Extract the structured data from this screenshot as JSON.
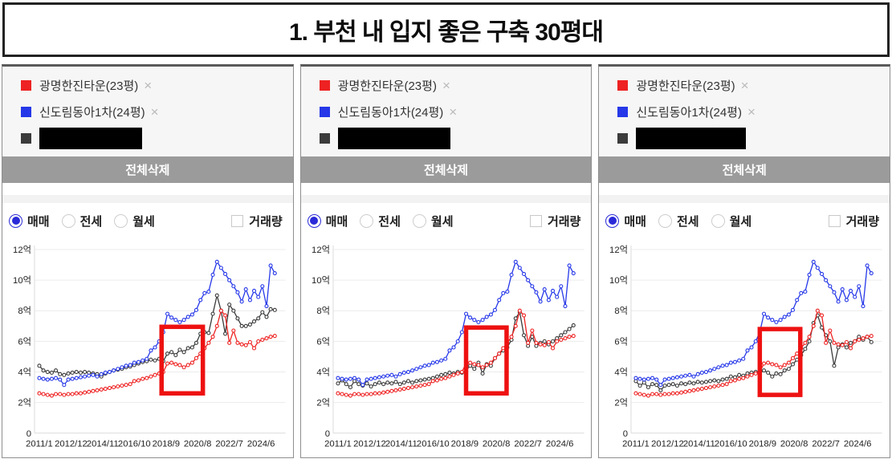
{
  "title": "1. 부천 내 입지 좋은 구축 30평대",
  "ui": {
    "delete_all_label": "전체삭제",
    "remove_icon": "×",
    "trade_types": [
      {
        "label": "매매",
        "selected": true
      },
      {
        "label": "전세",
        "selected": false
      },
      {
        "label": "월세",
        "selected": false
      }
    ],
    "volume_label": "거래량",
    "volume_checked": false,
    "colors": {
      "red_series": "#ee2222",
      "blue_series": "#2638e8",
      "black_series": "#3b3b3b",
      "button_bg": "#9b9b9b",
      "radio_selected": "#2a2ad8",
      "highlight_box": "#ee1111",
      "legend_bg": "#f6f6f6"
    }
  },
  "panels": [
    {
      "legend": [
        {
          "label": "광명한진타운(23평)",
          "color": "#ee2222",
          "removable": true,
          "redacted": false
        },
        {
          "label": "신도림동아1차(24평)",
          "color": "#2638e8",
          "removable": true,
          "redacted": false
        },
        {
          "label": "",
          "color": "#3b3b3b",
          "removable": false,
          "redacted": true,
          "redacted_width": 128
        }
      ],
      "chart_index": 0
    },
    {
      "legend": [
        {
          "label": "광명한진타운(23평)",
          "color": "#ee2222",
          "removable": true,
          "redacted": false
        },
        {
          "label": "신도림동아1차(24평)",
          "color": "#2638e8",
          "removable": true,
          "redacted": false
        },
        {
          "label": "",
          "color": "#3b3b3b",
          "removable": false,
          "redacted": true,
          "redacted_width": 140
        }
      ],
      "chart_index": 1
    },
    {
      "legend": [
        {
          "label": "광명한진타운(23평)",
          "color": "#ee2222",
          "removable": true,
          "redacted": false
        },
        {
          "label": "신도림동아1차(24평)",
          "color": "#2638e8",
          "removable": true,
          "redacted": false
        },
        {
          "label": "",
          "color": "#3b3b3b",
          "removable": false,
          "redacted": true,
          "redacted_width": 137
        }
      ],
      "chart_index": 2
    }
  ],
  "chart_data": [
    {
      "type": "line",
      "title": "",
      "unit": "억",
      "x_start": 2011.0,
      "x_step": 0.25,
      "x_tick_labels": [
        "2011/1",
        "2012/12",
        "2014/11",
        "2016/10",
        "2018/9",
        "2020/8",
        "2022/7",
        "2024/6"
      ],
      "x_tick_values": [
        2011.0,
        2012.92,
        2014.83,
        2016.75,
        2018.67,
        2020.58,
        2022.5,
        2024.42
      ],
      "y_tick_labels": [
        "0",
        "2억",
        "4억",
        "6억",
        "8억",
        "10억",
        "12억"
      ],
      "y_tick_values": [
        0,
        2,
        4,
        6,
        8,
        10,
        12
      ],
      "ylim": [
        0,
        12.6
      ],
      "grid": "horizontal",
      "legend_position": "top-panel",
      "series": [
        {
          "name": "광명한진타운(23평)",
          "color": "#ee2222",
          "redacted": false,
          "values": [
            2.6,
            2.55,
            2.5,
            2.45,
            2.55,
            2.55,
            2.5,
            2.55,
            2.55,
            2.6,
            2.6,
            2.65,
            2.7,
            2.75,
            2.8,
            2.85,
            2.9,
            2.95,
            3.0,
            3.05,
            3.1,
            3.15,
            3.2,
            3.4,
            3.45,
            3.55,
            3.6,
            3.7,
            3.8,
            3.9,
            4.0,
            4.55,
            4.6,
            4.5,
            4.45,
            4.3,
            4.45,
            4.6,
            4.9,
            5.2,
            5.55,
            5.9,
            6.3,
            7.0,
            8.0,
            7.7,
            5.9,
            6.7,
            5.9,
            5.8,
            5.75,
            5.95,
            5.55,
            6.0,
            6.1,
            6.2,
            6.3,
            6.35
          ]
        },
        {
          "name": "신도림동아1차(24평)",
          "color": "#2638e8",
          "redacted": false,
          "values": [
            3.6,
            3.55,
            3.5,
            3.55,
            3.6,
            3.5,
            3.15,
            3.5,
            3.55,
            3.6,
            3.65,
            3.7,
            3.75,
            3.8,
            3.7,
            3.85,
            3.95,
            4.0,
            4.1,
            4.2,
            4.3,
            4.4,
            4.45,
            4.6,
            4.65,
            4.75,
            4.85,
            5.4,
            5.6,
            6.0,
            6.6,
            7.8,
            7.55,
            7.4,
            7.25,
            7.4,
            7.6,
            7.75,
            8.05,
            8.7,
            9.15,
            9.25,
            10.35,
            11.2,
            10.8,
            10.4,
            10.0,
            9.6,
            9.2,
            8.6,
            9.4,
            8.7,
            9.3,
            8.9,
            9.6,
            8.3,
            10.95,
            10.45
          ]
        },
        {
          "name": "",
          "color": "#3b3b3b",
          "redacted": true,
          "values": [
            4.4,
            4.1,
            4.0,
            3.95,
            4.1,
            3.85,
            3.8,
            3.9,
            3.95,
            4.0,
            3.95,
            4.0,
            3.95,
            3.9,
            3.85,
            3.7,
            3.9,
            4.0,
            4.1,
            4.15,
            4.2,
            4.3,
            4.35,
            4.45,
            4.55,
            4.65,
            4.7,
            4.8,
            4.75,
            4.85,
            4.7,
            5.2,
            5.3,
            5.1,
            5.45,
            5.3,
            5.55,
            5.6,
            5.9,
            6.5,
            6.6,
            6.55,
            7.8,
            9.0,
            8.0,
            6.5,
            8.4,
            8.0,
            7.5,
            7.0,
            7.0,
            7.1,
            7.3,
            7.5,
            7.9,
            7.6,
            8.1,
            8.05
          ]
        }
      ],
      "annotation_box": {
        "x": [
          2018.4,
          2020.9
        ],
        "y": [
          2.6,
          6.95
        ],
        "color": "#ee1111"
      }
    },
    {
      "type": "line",
      "title": "",
      "unit": "억",
      "x_start": 2011.0,
      "x_step": 0.25,
      "x_tick_labels": [
        "2011/1",
        "2012/12",
        "2014/11",
        "2016/10",
        "2018/9",
        "2020/8",
        "2022/7",
        "2024/6"
      ],
      "x_tick_values": [
        2011.0,
        2012.92,
        2014.83,
        2016.75,
        2018.67,
        2020.58,
        2022.5,
        2024.42
      ],
      "y_tick_labels": [
        "0",
        "2억",
        "4억",
        "6억",
        "8억",
        "10억",
        "12억"
      ],
      "y_tick_values": [
        0,
        2,
        4,
        6,
        8,
        10,
        12
      ],
      "ylim": [
        0,
        12.6
      ],
      "grid": "horizontal",
      "legend_position": "top-panel",
      "series": [
        {
          "name": "광명한진타운(23평)",
          "color": "#ee2222",
          "redacted": false,
          "values": [
            2.6,
            2.55,
            2.5,
            2.45,
            2.55,
            2.55,
            2.5,
            2.55,
            2.55,
            2.6,
            2.6,
            2.65,
            2.7,
            2.75,
            2.8,
            2.85,
            2.9,
            2.95,
            3.0,
            3.05,
            3.1,
            3.15,
            3.2,
            3.4,
            3.45,
            3.55,
            3.6,
            3.7,
            3.8,
            3.9,
            4.0,
            4.55,
            4.6,
            4.5,
            4.45,
            4.3,
            4.45,
            4.6,
            4.9,
            5.2,
            5.55,
            5.9,
            6.3,
            7.0,
            8.0,
            7.7,
            5.9,
            6.7,
            5.9,
            5.8,
            5.75,
            5.95,
            5.55,
            6.0,
            6.1,
            6.2,
            6.3,
            6.35
          ]
        },
        {
          "name": "신도림동아1차(24평)",
          "color": "#2638e8",
          "redacted": false,
          "values": [
            3.6,
            3.55,
            3.5,
            3.55,
            3.6,
            3.5,
            3.15,
            3.5,
            3.55,
            3.6,
            3.65,
            3.7,
            3.75,
            3.8,
            3.7,
            3.85,
            3.95,
            4.0,
            4.1,
            4.2,
            4.3,
            4.4,
            4.45,
            4.6,
            4.65,
            4.75,
            4.85,
            5.4,
            5.6,
            6.0,
            6.6,
            7.8,
            7.55,
            7.4,
            7.25,
            7.4,
            7.6,
            7.75,
            8.05,
            8.7,
            9.15,
            9.25,
            10.35,
            11.2,
            10.8,
            10.4,
            10.0,
            9.6,
            9.2,
            8.6,
            9.4,
            8.7,
            9.3,
            8.9,
            9.6,
            8.3,
            10.95,
            10.45
          ]
        },
        {
          "name": "",
          "color": "#3b3b3b",
          "redacted": true,
          "values": [
            3.25,
            3.45,
            3.2,
            3.0,
            3.4,
            3.2,
            3.1,
            3.25,
            3.05,
            3.2,
            3.3,
            3.2,
            3.3,
            3.25,
            3.35,
            3.2,
            3.3,
            3.4,
            3.3,
            3.4,
            3.45,
            3.5,
            3.55,
            3.6,
            3.7,
            3.8,
            3.85,
            3.95,
            3.9,
            4.0,
            3.95,
            4.1,
            4.4,
            4.2,
            4.6,
            3.9,
            4.5,
            4.4,
            4.9,
            5.2,
            5.4,
            5.6,
            6.1,
            7.5,
            7.9,
            6.4,
            5.7,
            6.3,
            5.7,
            5.9,
            6.0,
            5.8,
            6.0,
            6.2,
            6.4,
            6.6,
            6.8,
            7.05
          ]
        }
      ],
      "annotation_box": {
        "x": [
          2018.75,
          2021.2
        ],
        "y": [
          2.6,
          6.9
        ],
        "color": "#ee1111"
      }
    },
    {
      "type": "line",
      "title": "",
      "unit": "억",
      "x_start": 2011.0,
      "x_step": 0.25,
      "x_tick_labels": [
        "2011/1",
        "2012/12",
        "2014/11",
        "2016/10",
        "2018/9",
        "2020/8",
        "2022/7",
        "2024/6"
      ],
      "x_tick_values": [
        2011.0,
        2012.92,
        2014.83,
        2016.75,
        2018.67,
        2020.58,
        2022.5,
        2024.42
      ],
      "y_tick_labels": [
        "0",
        "2억",
        "4억",
        "6억",
        "8억",
        "10억",
        "12억"
      ],
      "y_tick_values": [
        0,
        2,
        4,
        6,
        8,
        10,
        12
      ],
      "ylim": [
        0,
        12.6
      ],
      "grid": "horizontal",
      "legend_position": "top-panel",
      "series": [
        {
          "name": "광명한진타운(23평)",
          "color": "#ee2222",
          "redacted": false,
          "values": [
            2.6,
            2.55,
            2.5,
            2.45,
            2.55,
            2.55,
            2.5,
            2.55,
            2.55,
            2.6,
            2.6,
            2.65,
            2.7,
            2.75,
            2.8,
            2.85,
            2.9,
            2.95,
            3.0,
            3.05,
            3.1,
            3.15,
            3.2,
            3.4,
            3.45,
            3.55,
            3.6,
            3.7,
            3.8,
            3.9,
            4.0,
            4.55,
            4.6,
            4.5,
            4.45,
            4.3,
            4.45,
            4.6,
            4.9,
            5.2,
            5.55,
            5.9,
            6.3,
            7.0,
            8.0,
            7.7,
            5.9,
            6.7,
            5.9,
            5.8,
            5.75,
            5.95,
            5.55,
            6.0,
            6.1,
            6.2,
            6.3,
            6.35
          ]
        },
        {
          "name": "신도림동아1차(24평)",
          "color": "#2638e8",
          "redacted": false,
          "values": [
            3.6,
            3.55,
            3.5,
            3.55,
            3.6,
            3.5,
            3.15,
            3.5,
            3.55,
            3.6,
            3.65,
            3.7,
            3.75,
            3.8,
            3.7,
            3.85,
            3.95,
            4.0,
            4.1,
            4.2,
            4.3,
            4.4,
            4.45,
            4.6,
            4.65,
            4.75,
            4.85,
            5.4,
            5.6,
            6.0,
            6.6,
            7.8,
            7.55,
            7.4,
            7.25,
            7.4,
            7.6,
            7.75,
            8.05,
            8.7,
            9.15,
            9.25,
            10.35,
            11.2,
            10.8,
            10.4,
            10.0,
            9.6,
            9.2,
            8.6,
            9.4,
            8.7,
            9.3,
            8.9,
            9.6,
            8.3,
            10.95,
            10.45
          ]
        },
        {
          "name": "",
          "color": "#3b3b3b",
          "redacted": true,
          "values": [
            3.4,
            3.1,
            3.3,
            3.0,
            3.2,
            3.15,
            2.8,
            3.1,
            3.15,
            3.2,
            3.1,
            3.25,
            3.2,
            3.3,
            3.25,
            3.35,
            3.3,
            3.35,
            3.4,
            3.45,
            3.4,
            3.5,
            3.55,
            3.7,
            3.65,
            3.8,
            3.75,
            3.9,
            3.95,
            4.0,
            3.9,
            4.1,
            3.95,
            3.7,
            3.9,
            3.85,
            4.1,
            4.2,
            4.5,
            4.8,
            5.1,
            5.5,
            6.0,
            7.2,
            7.7,
            6.9,
            6.4,
            6.0,
            4.4,
            5.6,
            5.8,
            5.6,
            5.9,
            6.0,
            6.3,
            6.1,
            6.3,
            5.95
          ]
        }
      ],
      "annotation_box": {
        "x": [
          2018.5,
          2020.95
        ],
        "y": [
          2.5,
          6.8
        ],
        "color": "#ee1111"
      }
    }
  ]
}
